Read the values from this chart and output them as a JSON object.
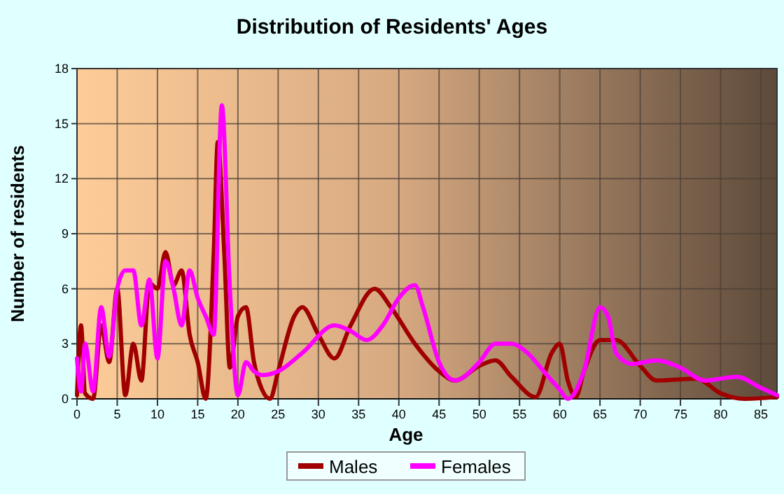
{
  "chart_data": {
    "type": "line",
    "title": "Distribution of Residents' Ages",
    "xlabel": "Age",
    "ylabel": "Number of residents",
    "xlim": [
      0,
      87
    ],
    "xticks": [
      0,
      5,
      10,
      15,
      20,
      25,
      30,
      35,
      40,
      45,
      50,
      55,
      60,
      65,
      70,
      75,
      80,
      85
    ],
    "ylim": [
      0,
      18
    ],
    "yticks": [
      0,
      3,
      6,
      9,
      12,
      15,
      18
    ],
    "grid": true,
    "legend": "bottom",
    "marker": "none",
    "line_style": "solid",
    "series": [
      {
        "name": "Males",
        "color": "#a00000",
        "x": [
          0,
          0.5,
          1,
          2,
          3,
          4,
          5,
          6,
          7,
          8,
          9,
          10,
          11,
          12,
          13,
          14,
          15,
          16,
          17,
          17.5,
          18.3,
          19,
          20,
          21,
          22,
          23,
          24,
          25,
          27,
          28,
          30,
          32,
          34,
          37,
          39,
          42,
          45,
          47,
          50,
          52,
          54,
          57,
          59,
          60,
          61,
          62,
          63,
          65,
          67,
          70,
          72,
          77,
          80,
          83,
          87
        ],
        "values": [
          0.2,
          4,
          0.3,
          0,
          4,
          2,
          6,
          0.2,
          3,
          1,
          6.3,
          6,
          8,
          6.2,
          7,
          3.5,
          2,
          0,
          8,
          14,
          8,
          1.7,
          4.5,
          5,
          2,
          0.5,
          0,
          1.5,
          4.5,
          5,
          3.5,
          2.2,
          4,
          6,
          5,
          3,
          1.5,
          1,
          1.8,
          2.1,
          1.2,
          0.1,
          2.5,
          3,
          1,
          0.1,
          1.5,
          3.2,
          3.2,
          1.8,
          1,
          1.1,
          0.3,
          0,
          0.1
        ]
      },
      {
        "name": "Females",
        "color": "#ff00ff",
        "x": [
          0,
          0.5,
          1,
          2,
          3,
          4,
          5,
          6,
          7,
          8,
          9,
          10,
          11,
          12,
          13,
          14,
          15,
          16,
          17,
          18,
          19,
          20,
          21,
          22,
          23,
          25,
          28,
          32,
          34,
          36,
          38,
          40,
          42,
          43,
          45,
          47,
          50,
          52,
          54,
          56,
          58,
          60,
          61,
          63,
          65,
          66,
          67,
          69,
          72,
          75,
          78,
          82,
          85,
          87
        ],
        "values": [
          2.2,
          0.4,
          3,
          0.4,
          5,
          2.3,
          6,
          7,
          7,
          4,
          6.5,
          2.2,
          7.5,
          6,
          4,
          7,
          5.5,
          4.5,
          3.5,
          16,
          6,
          0.2,
          2,
          1.5,
          1.3,
          1.5,
          2.5,
          4,
          3.7,
          3.2,
          4,
          5.5,
          6.2,
          5,
          2,
          1,
          2,
          3,
          3,
          2.5,
          1.5,
          0.5,
          0,
          1.5,
          5,
          4.5,
          2.5,
          1.9,
          2.1,
          1.7,
          1,
          1.2,
          0.6,
          0.2
        ]
      }
    ]
  }
}
